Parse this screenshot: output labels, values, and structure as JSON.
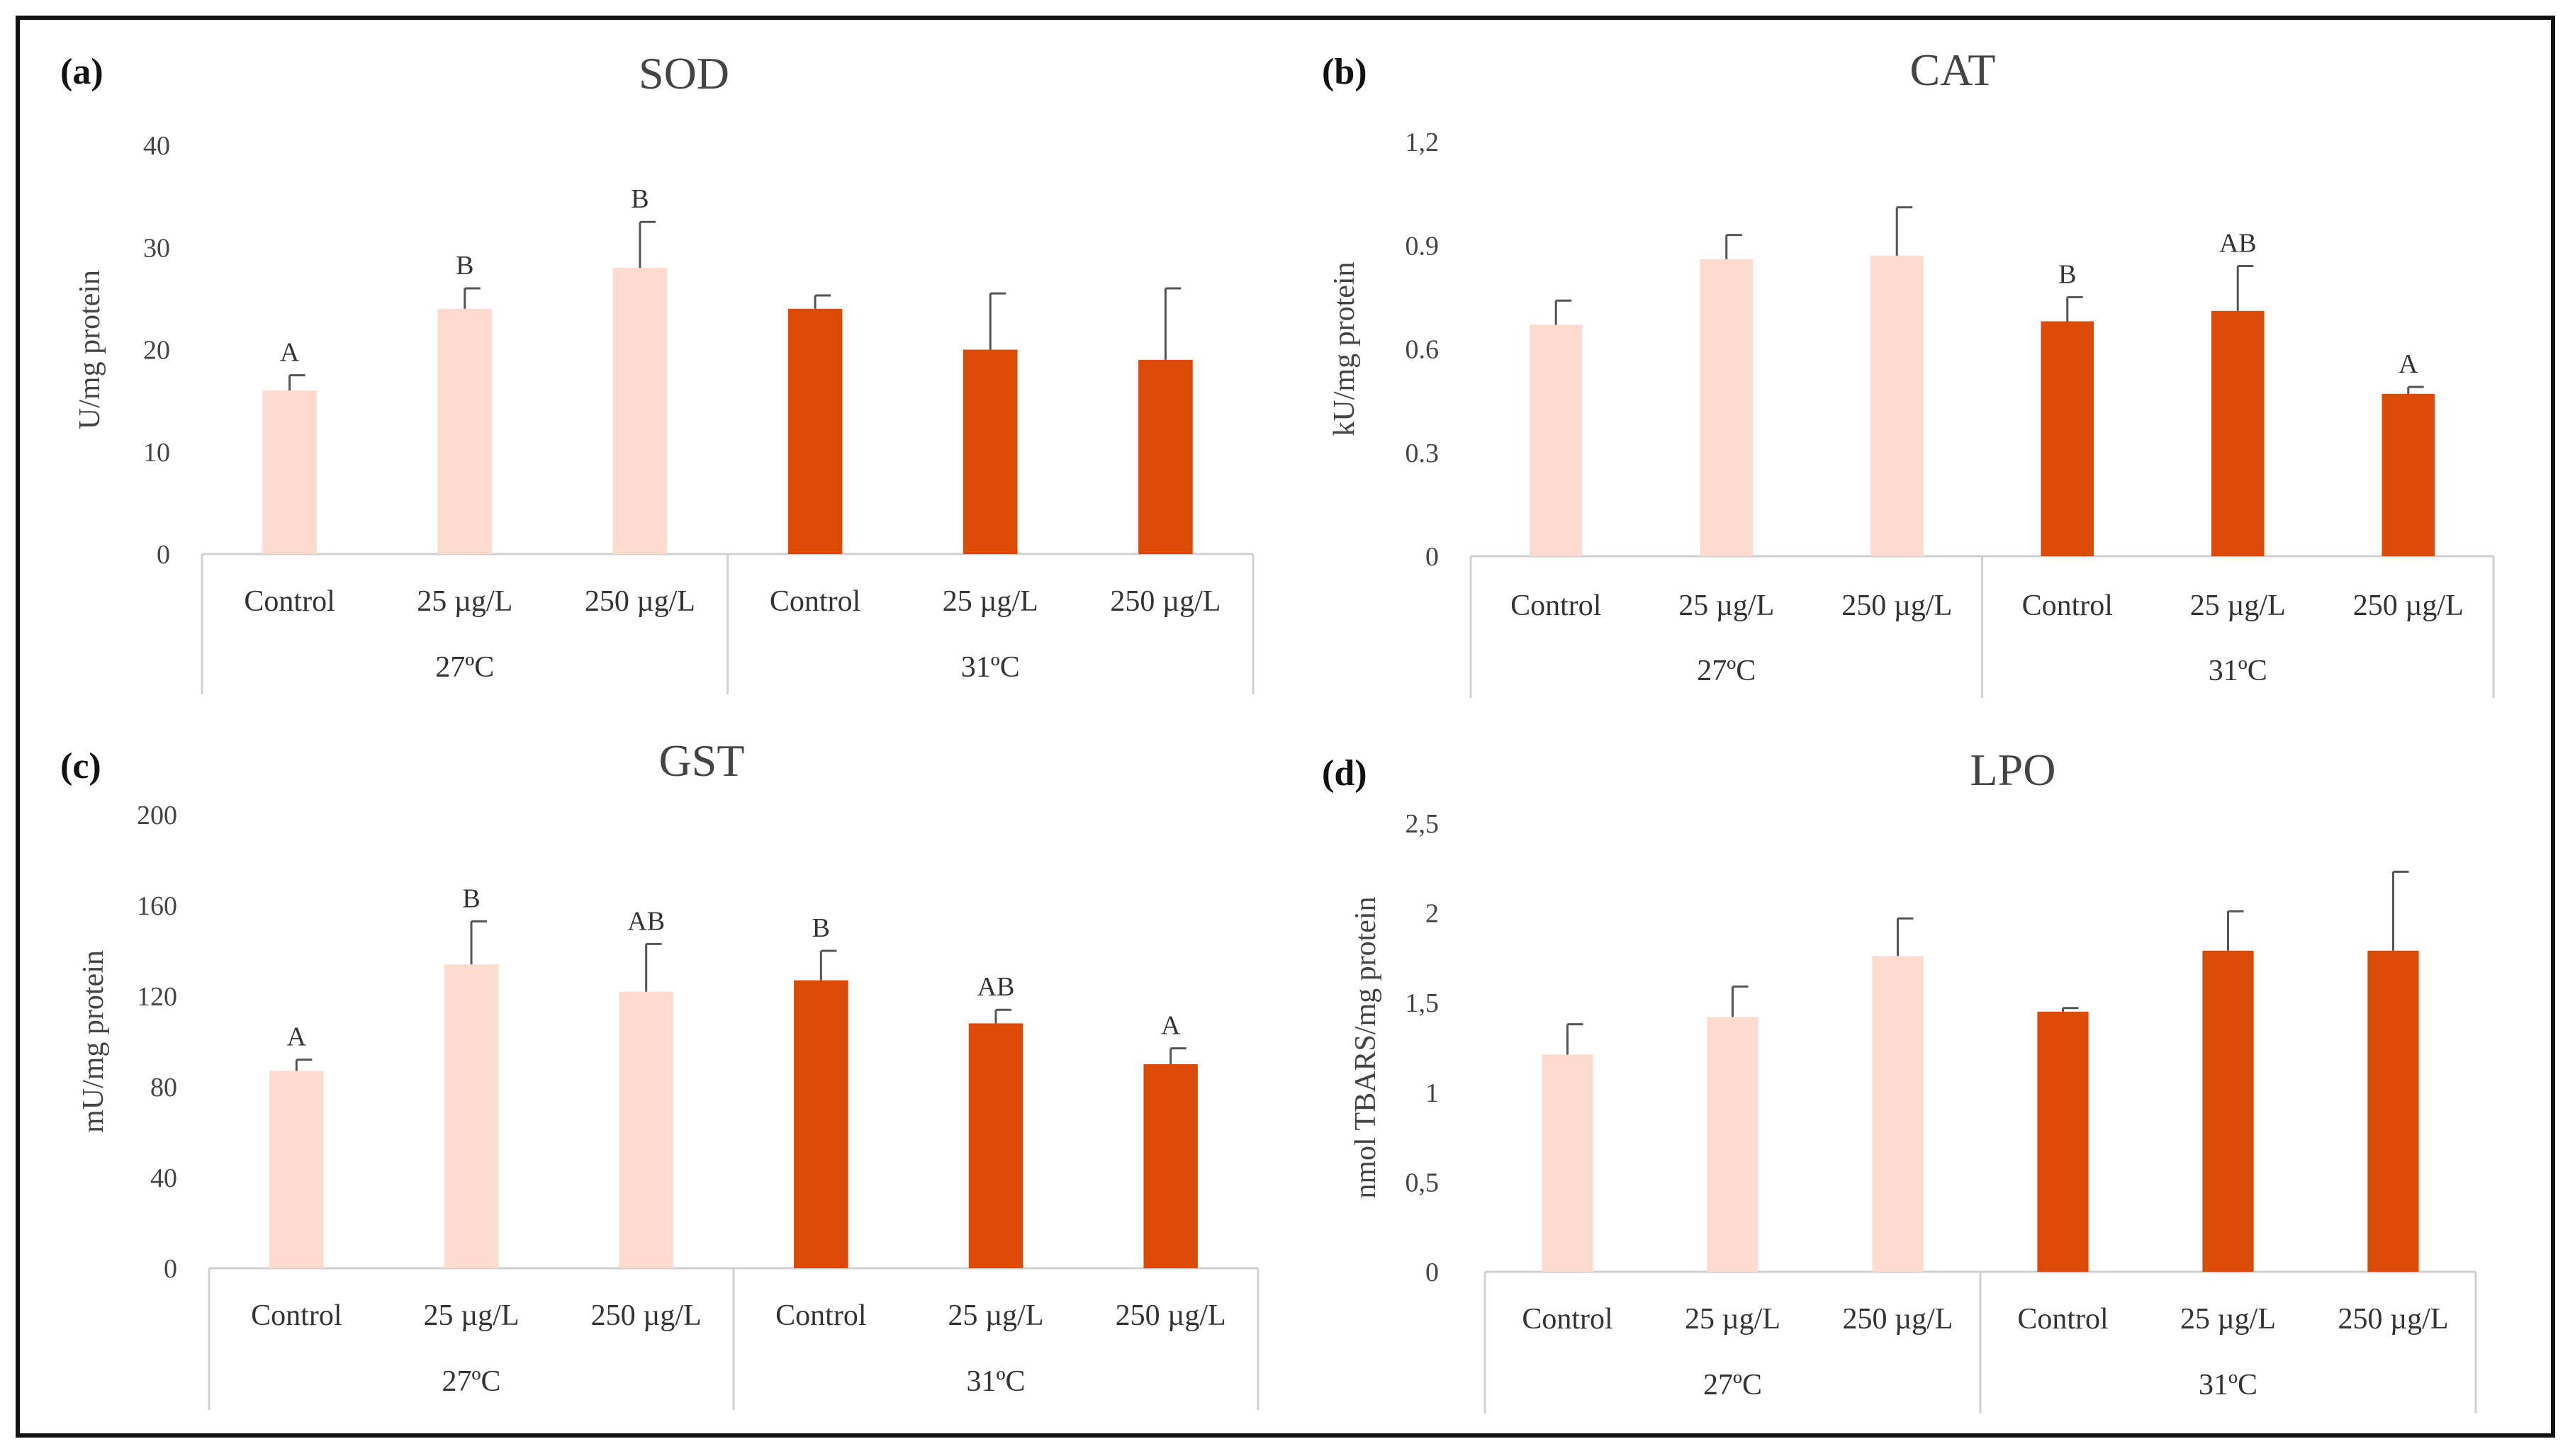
{
  "colors": {
    "light": "#FDDCCF",
    "dark": "#DB4A06",
    "axis": "#d0d0d0",
    "error": "#555555"
  },
  "chart_data": [
    {
      "type": "bar",
      "panel_label": "(a)",
      "title": "SOD",
      "ylabel": "U/mg protein",
      "ylim": [
        0,
        40
      ],
      "yticks": [
        0,
        10,
        20,
        30,
        40
      ],
      "ytick_labels": [
        "0",
        "10",
        "20",
        "30",
        "40"
      ],
      "categories": [
        "Control",
        "25 µg/L",
        "250 µg/L",
        "Control",
        "25 µg/L",
        "250 µg/L"
      ],
      "groups": [
        {
          "label": "27ºC",
          "color": "light"
        },
        {
          "label": "31ºC",
          "color": "dark"
        }
      ],
      "values": [
        16,
        24,
        28,
        24,
        20,
        19
      ],
      "errors": [
        1.5,
        2,
        4.5,
        1.3,
        5.5,
        7
      ],
      "significance": [
        "A",
        "B",
        "B",
        "",
        "",
        ""
      ]
    },
    {
      "type": "bar",
      "panel_label": "(b)",
      "title": "CAT",
      "ylabel": "kU/mg protein",
      "ylim": [
        0,
        1.2
      ],
      "yticks": [
        0,
        0.3,
        0.6,
        0.9,
        1.2
      ],
      "ytick_labels": [
        "0",
        "0.3",
        "0.6",
        "0.9",
        "1,2"
      ],
      "categories": [
        "Control",
        "25 µg/L",
        "250 µg/L",
        "Control",
        "25 µg/L",
        "250 µg/L"
      ],
      "groups": [
        {
          "label": "27ºC",
          "color": "light"
        },
        {
          "label": "31ºC",
          "color": "dark"
        }
      ],
      "values": [
        0.67,
        0.86,
        0.87,
        0.68,
        0.71,
        0.47
      ],
      "errors": [
        0.07,
        0.07,
        0.14,
        0.07,
        0.13,
        0.02
      ],
      "significance": [
        "",
        "",
        "",
        "B",
        "AB",
        "A"
      ]
    },
    {
      "type": "bar",
      "panel_label": "(c)",
      "title": "GST",
      "ylabel": "mU/mg protein",
      "ylim": [
        0,
        200
      ],
      "yticks": [
        0,
        40,
        80,
        120,
        160,
        200
      ],
      "ytick_labels": [
        "0",
        "40",
        "80",
        "120",
        "160",
        "200"
      ],
      "categories": [
        "Control",
        "25 µg/L",
        "250 µg/L",
        "Control",
        "25 µg/L",
        "250 µg/L"
      ],
      "groups": [
        {
          "label": "27ºC",
          "color": "light"
        },
        {
          "label": "31ºC",
          "color": "dark"
        }
      ],
      "values": [
        87,
        134,
        122,
        127,
        108,
        90
      ],
      "errors": [
        5,
        19,
        21,
        13,
        6,
        7
      ],
      "significance": [
        "A",
        "B",
        "AB",
        "B",
        "AB",
        "A"
      ]
    },
    {
      "type": "bar",
      "panel_label": "(d)",
      "title": "LPO",
      "ylabel": "nmol TBARS/mg protein",
      "ylim": [
        0,
        2.5
      ],
      "yticks": [
        0,
        0.5,
        1,
        1.5,
        2,
        2.5
      ],
      "ytick_labels": [
        "0",
        "0,5",
        "1",
        "1,5",
        "2",
        "2,5"
      ],
      "categories": [
        "Control",
        "25 µg/L",
        "250 µg/L",
        "Control",
        "25 µg/L",
        "250 µg/L"
      ],
      "groups": [
        {
          "label": "27ºC",
          "color": "light"
        },
        {
          "label": "31ºC",
          "color": "dark"
        }
      ],
      "values": [
        1.21,
        1.42,
        1.76,
        1.45,
        1.79,
        1.79
      ],
      "errors": [
        0.17,
        0.17,
        0.21,
        0.02,
        0.22,
        0.44
      ],
      "significance": [
        "",
        "",
        "",
        "",
        "",
        ""
      ]
    }
  ]
}
